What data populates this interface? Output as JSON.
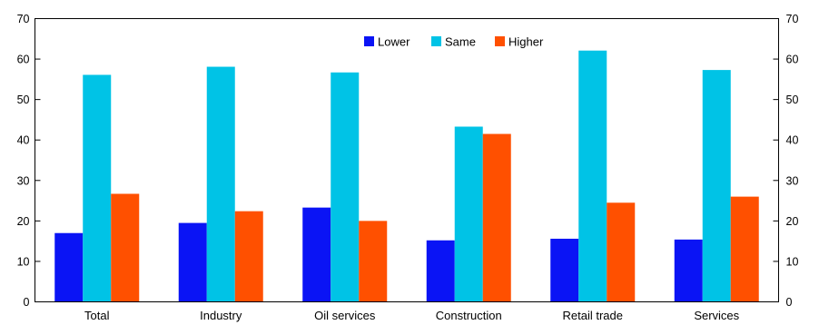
{
  "chart_data": {
    "type": "bar",
    "categories": [
      "Total",
      "Industry",
      "Oil services",
      "Construction",
      "Retail trade",
      "Services"
    ],
    "series": [
      {
        "name": "Lower",
        "color": "#0a14f5",
        "values": [
          17,
          19.5,
          23.3,
          15.2,
          15.6,
          15.4
        ]
      },
      {
        "name": "Same",
        "color": "#00c3e6",
        "values": [
          56.1,
          58.1,
          56.7,
          43.3,
          62.1,
          57.3
        ]
      },
      {
        "name": "Higher",
        "color": "#ff5000",
        "values": [
          26.7,
          22.4,
          20,
          41.5,
          24.5,
          26
        ]
      }
    ],
    "ylim": [
      0,
      70
    ],
    "yticks": [
      0,
      10,
      20,
      30,
      40,
      50,
      60,
      70
    ],
    "secondary_yaxis": true,
    "legend_position": "top-center",
    "grid": false
  }
}
